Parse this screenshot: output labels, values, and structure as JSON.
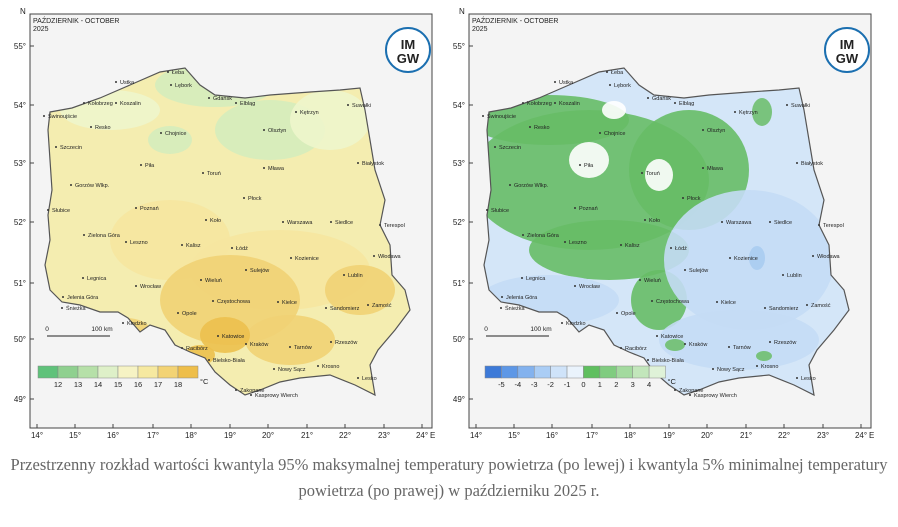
{
  "maps": [
    {
      "title": "PAŹDZIERNIK - OCTOBER",
      "year": "2025",
      "legend": {
        "labels": [
          "12",
          "13",
          "14",
          "15",
          "16",
          "17",
          "18"
        ],
        "colors": [
          "#5fc27a",
          "#8fd08f",
          "#b6e0a8",
          "#def0c8",
          "#f6f3c4",
          "#f6e9a0",
          "#f3d374",
          "#eebe4a"
        ],
        "unit": "°C"
      }
    },
    {
      "title": "PAŹDZIERNIK - OCTOBER",
      "year": "2025",
      "legend": {
        "labels": [
          "-5",
          "-4",
          "-3",
          "-2",
          "-1",
          "0",
          "1",
          "2",
          "3",
          "4"
        ],
        "colors": [
          "#3d7ad8",
          "#5d97e6",
          "#83b2ee",
          "#aacdf5",
          "#cfe3f9",
          "#eaf3fc",
          "#5fbf5f",
          "#80cc80",
          "#a3da9f",
          "#c2e6bb",
          "#dff2d8"
        ],
        "unit": "°C"
      }
    }
  ],
  "lat_labels": [
    "55°",
    "54°",
    "53°",
    "52°",
    "51°",
    "50°",
    "49°"
  ],
  "lon_labels": [
    "14°",
    "15°",
    "16°",
    "17°",
    "18°",
    "19°",
    "20°",
    "21°",
    "22°",
    "23°",
    "24°"
  ],
  "north": "N",
  "east": "E",
  "scale": {
    "start": "0",
    "end": "100 km"
  },
  "logo": {
    "top": "IM",
    "bottom": "GW"
  },
  "cities": [
    "Ustka",
    "Łeba",
    "Lębork",
    "Gdańsk",
    "Elbląg",
    "Kołobrzeg",
    "Koszalin",
    "Świnoujście",
    "Resko",
    "Chojnice",
    "Kętrzyn",
    "Suwałki",
    "Olsztyn",
    "Szczecin",
    "Mława",
    "Piła",
    "Toruń",
    "Białystok",
    "Gorzów Wlkp.",
    "Płock",
    "Poznań",
    "Słubice",
    "Koło",
    "Warszawa",
    "Siedlce",
    "Terespol",
    "Zielona Góra",
    "Leszno",
    "Kalisz",
    "Łódź",
    "Włodawa",
    "Kozienice",
    "Sulejów",
    "Legnica",
    "Wieluń",
    "Lublin",
    "Wrocław",
    "Jelenia Góra",
    "Częstochowa",
    "Kielce",
    "Sandomierz",
    "Zamość",
    "Śnieżka",
    "Opole",
    "Kłodzko",
    "Katowice",
    "Racibórz",
    "Kraków",
    "Tarnów",
    "Rzeszów",
    "Bielsko-Biała",
    "Nowy Sącz",
    "Krosno",
    "Lesko",
    "Zakopane",
    "Kasprowy Wierch"
  ],
  "caption": "Przestrzenny rozkład wartości kwantyla 95% maksymalnej temperatury powietrza (po lewej) i kwantyla 5% minimalnej temperatury powietrza (po prawej) w październiku 2025 r."
}
